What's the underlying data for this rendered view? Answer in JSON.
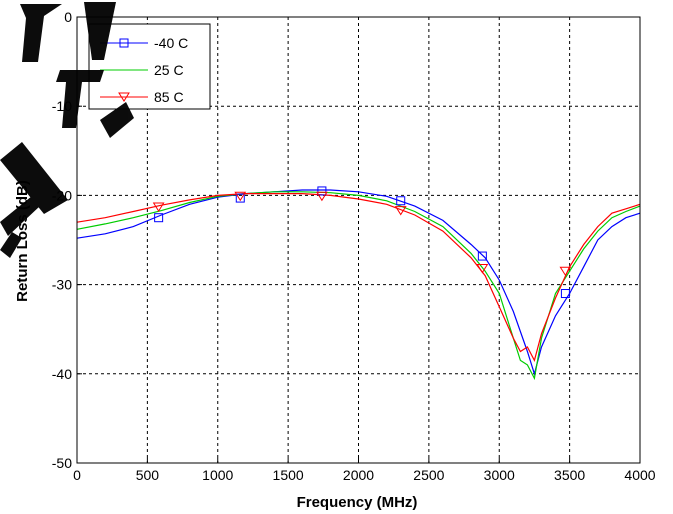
{
  "chart_data": {
    "type": "line",
    "title": "",
    "xlabel": "Frequency (MHz)",
    "ylabel": "Return Loss (dB)",
    "xlim": [
      0,
      4000
    ],
    "ylim": [
      -50,
      0
    ],
    "xticks": [
      0,
      500,
      1000,
      1500,
      2000,
      2500,
      3000,
      3500,
      4000
    ],
    "yticks": [
      0,
      -10,
      -20,
      -30,
      -40,
      -50
    ],
    "grid": true,
    "grid_style": "dashed",
    "legend_position": "top-left",
    "series": [
      {
        "name": "-40 C",
        "color": "#0000ff",
        "marker": "square",
        "x": [
          0,
          200,
          400,
          600,
          800,
          1000,
          1200,
          1400,
          1600,
          1800,
          2000,
          2200,
          2400,
          2600,
          2800,
          2900,
          3000,
          3100,
          3200,
          3250,
          3300,
          3400,
          3500,
          3600,
          3700,
          3800,
          3900,
          4000
        ],
        "y": [
          -24.8,
          -24.3,
          -23.5,
          -22.2,
          -21.0,
          -20.2,
          -19.8,
          -19.6,
          -19.4,
          -19.4,
          -19.6,
          -20.1,
          -21.2,
          -22.8,
          -25.5,
          -27.0,
          -29.5,
          -33.0,
          -37.5,
          -40.0,
          -37.0,
          -33.5,
          -31.0,
          -28.0,
          -25.0,
          -23.5,
          -22.5,
          -22.0
        ],
        "marker_x": [
          580,
          1160,
          1740,
          2300,
          2880,
          3470
        ],
        "marker_y": [
          -22.5,
          -20.3,
          -19.5,
          -20.6,
          -26.8,
          -31.0
        ]
      },
      {
        "name": "25 C",
        "color": "#00cc00",
        "marker": "none",
        "x": [
          0,
          200,
          400,
          600,
          800,
          1000,
          1200,
          1400,
          1600,
          1800,
          2000,
          2200,
          2400,
          2600,
          2800,
          2900,
          3000,
          3100,
          3150,
          3200,
          3250,
          3300,
          3400,
          3500,
          3600,
          3700,
          3800,
          3900,
          4000
        ],
        "y": [
          -23.8,
          -23.2,
          -22.5,
          -21.7,
          -20.8,
          -20.1,
          -19.8,
          -19.6,
          -19.6,
          -19.7,
          -20.0,
          -20.6,
          -21.8,
          -23.5,
          -26.5,
          -28.5,
          -31.0,
          -36.0,
          -38.5,
          -39.0,
          -40.5,
          -36.0,
          -31.0,
          -28.5,
          -26.0,
          -24.0,
          -22.5,
          -21.8,
          -21.2
        ]
      },
      {
        "name": "85 C",
        "color": "#ff0000",
        "marker": "triangle-down",
        "x": [
          0,
          200,
          400,
          600,
          800,
          1000,
          1200,
          1400,
          1600,
          1800,
          2000,
          2200,
          2400,
          2600,
          2800,
          2900,
          3000,
          3100,
          3150,
          3200,
          3250,
          3300,
          3400,
          3500,
          3600,
          3700,
          3800,
          3900,
          4000
        ],
        "y": [
          -23.0,
          -22.5,
          -21.8,
          -21.1,
          -20.5,
          -20.0,
          -19.8,
          -19.8,
          -19.8,
          -20.0,
          -20.4,
          -21.0,
          -22.2,
          -24.0,
          -27.0,
          -29.0,
          -32.5,
          -36.0,
          -37.5,
          -37.0,
          -38.5,
          -35.5,
          -31.5,
          -28.0,
          -25.5,
          -23.5,
          -22.0,
          -21.5,
          -21.0
        ],
        "marker_x": [
          580,
          1160,
          1740,
          2300,
          2880,
          3470
        ],
        "marker_y": [
          -21.3,
          -20.1,
          -20.1,
          -21.7,
          -28.2,
          -28.5
        ]
      }
    ]
  }
}
